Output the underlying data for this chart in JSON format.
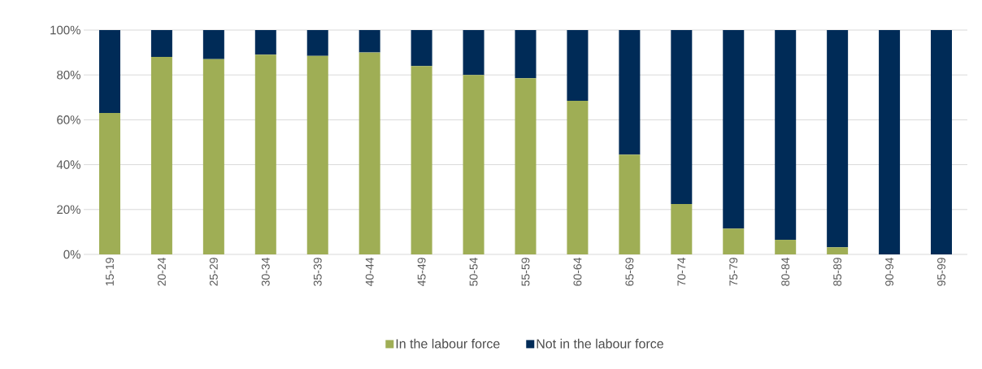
{
  "chart_data": {
    "type": "bar",
    "stacked": true,
    "categories": [
      "15-19",
      "20-24",
      "25-29",
      "30-34",
      "35-39",
      "40-44",
      "45-49",
      "50-54",
      "55-59",
      "60-64",
      "65-69",
      "70-74",
      "75-79",
      "80-84",
      "85-89",
      "90-94",
      "95-99"
    ],
    "series": [
      {
        "name": "In the labour force",
        "color": "#9fae55",
        "values": [
          63,
          88,
          87,
          89,
          88.5,
          90,
          84,
          80,
          78.5,
          68.5,
          44.5,
          22.5,
          11.5,
          6.5,
          3.2,
          0,
          0
        ]
      },
      {
        "name": "Not in the labour force",
        "color": "#002b57",
        "values": [
          37,
          12,
          13,
          11,
          11.5,
          10,
          16,
          20,
          21.5,
          31.5,
          55.5,
          77.5,
          88.5,
          93.5,
          96.8,
          100,
          100
        ]
      }
    ],
    "ylim": [
      0,
      100
    ],
    "yticks": [
      {
        "value": 0,
        "label": "0%"
      },
      {
        "value": 20,
        "label": "20%"
      },
      {
        "value": 40,
        "label": "40%"
      },
      {
        "value": 60,
        "label": "60%"
      },
      {
        "value": 80,
        "label": "80%"
      },
      {
        "value": 100,
        "label": "100%"
      }
    ],
    "grid": "y",
    "legend": "bottom"
  }
}
